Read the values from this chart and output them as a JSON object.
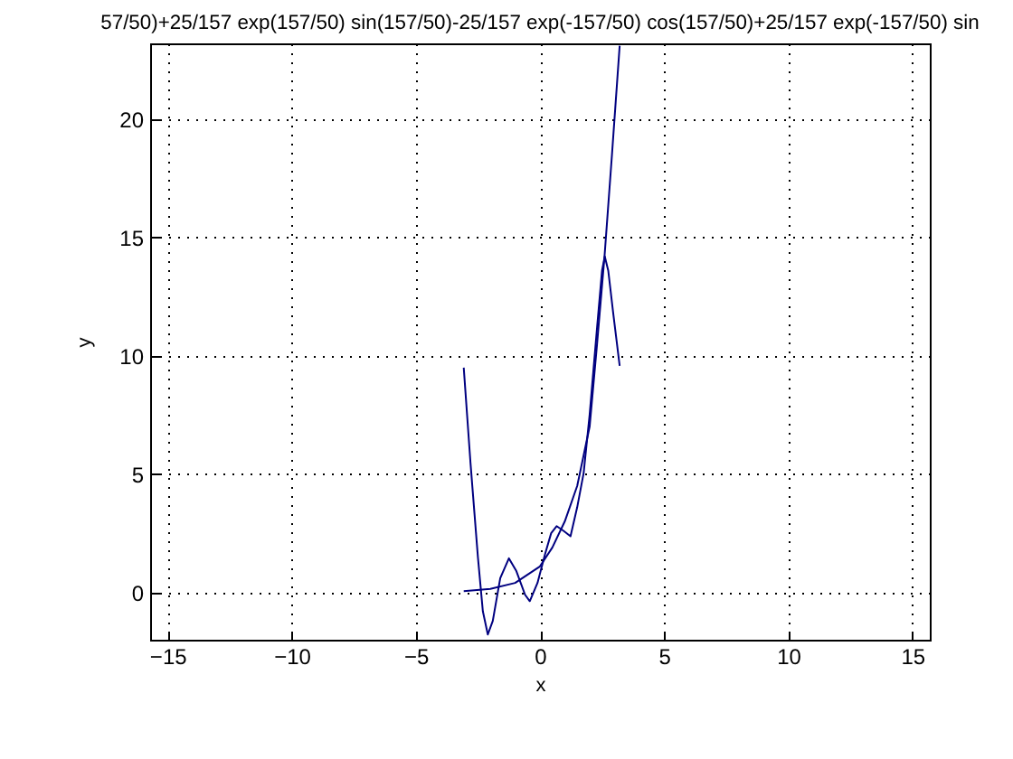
{
  "chart_data": {
    "type": "line",
    "title": "57/50)+25/157 exp(157/50) sin(157/50)-25/157 exp(-157/50) cos(157/50)+25/157 exp(-157/50) sin",
    "xlabel": "x",
    "ylabel": "y",
    "xlim": [
      -15.7,
      15.7
    ],
    "ylim": [
      -2,
      23.2
    ],
    "xticks": [
      -15,
      -10,
      -5,
      0,
      5,
      10,
      15
    ],
    "yticks": [
      0,
      5,
      10,
      15,
      20
    ],
    "grid": true,
    "line_style": "solid",
    "series": [
      {
        "color": "#000080",
        "x": [
          -3.07,
          -2.8,
          -2.5,
          -2.3,
          -2.1,
          -1.9,
          -1.6,
          -1.25,
          -0.95,
          -0.6,
          -0.41,
          -0.1,
          0.2,
          0.45,
          0.67,
          0.95,
          1.23,
          1.5,
          1.76,
          2.0,
          2.3,
          2.5,
          2.61,
          2.75,
          2.95,
          3.21
        ],
        "values": [
          9.5,
          5.5,
          1.5,
          -0.8,
          -1.78,
          -1.2,
          0.6,
          1.44,
          0.9,
          -0.1,
          -0.37,
          0.4,
          1.6,
          2.5,
          2.8,
          2.6,
          2.37,
          3.6,
          5.05,
          7.5,
          11.2,
          13.6,
          14.2,
          13.6,
          11.8,
          9.57
        ]
      },
      {
        "color": "#000080",
        "x": [
          -3.07,
          -2,
          -1,
          0,
          0.5,
          1,
          1.5,
          2.0,
          2.3,
          2.6,
          2.9,
          3.21
        ],
        "values": [
          0.05,
          0.15,
          0.4,
          1.1,
          1.9,
          3.0,
          4.5,
          7.0,
          10.5,
          14.2,
          18.5,
          23.1
        ]
      }
    ]
  }
}
